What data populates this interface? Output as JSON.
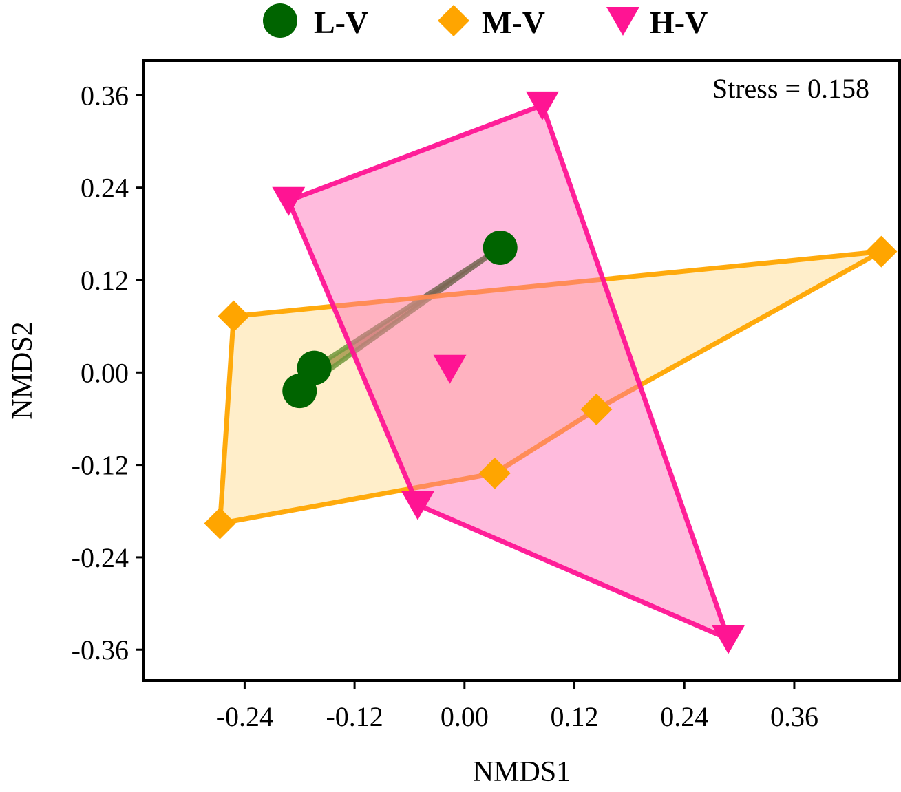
{
  "chart_data": {
    "type": "scatter",
    "xlabel": "NMDS1",
    "ylabel": "NMDS2",
    "xlim": [
      -0.35,
      0.475
    ],
    "ylim": [
      -0.4,
      0.405
    ],
    "xticks": [
      -0.24,
      -0.12,
      0.0,
      0.12,
      0.24,
      0.36
    ],
    "yticks": [
      -0.36,
      -0.24,
      -0.12,
      0.0,
      0.12,
      0.24,
      0.36
    ],
    "xtick_labels": [
      "-0.24",
      "-0.12",
      "0.00",
      "0.12",
      "0.24",
      "0.36"
    ],
    "ytick_labels": [
      "-0.36",
      "-0.24",
      "-0.12",
      "0.00",
      "0.12",
      "0.24",
      "0.36"
    ],
    "annotation": "Stress = 0.158",
    "legend_position": "top",
    "series": [
      {
        "name": "L-V",
        "marker": "circle",
        "color": "#006400",
        "fill_color": "#6b6b2a",
        "points": [
          [
            0.039,
            0.162
          ],
          [
            -0.164,
            0.006
          ],
          [
            -0.18,
            -0.024
          ]
        ],
        "hull": [
          [
            0.039,
            0.162
          ],
          [
            -0.164,
            0.006
          ],
          [
            -0.18,
            -0.024
          ]
        ]
      },
      {
        "name": "M-V",
        "marker": "diamond",
        "color": "#FFA500",
        "fill_color": "#FFD98A",
        "points": [
          [
            -0.252,
            0.073
          ],
          [
            0.455,
            0.157
          ],
          [
            0.144,
            -0.048
          ],
          [
            0.033,
            -0.131
          ],
          [
            -0.267,
            -0.196
          ]
        ],
        "hull": [
          [
            -0.252,
            0.073
          ],
          [
            0.455,
            0.157
          ],
          [
            0.144,
            -0.048
          ],
          [
            0.033,
            -0.131
          ],
          [
            -0.267,
            -0.196
          ]
        ]
      },
      {
        "name": "H-V",
        "marker": "triangle-down",
        "color": "#FF1493",
        "fill_color": "#FF69B4",
        "points": [
          [
            0.085,
            0.347
          ],
          [
            -0.192,
            0.223
          ],
          [
            -0.016,
            0.005
          ],
          [
            -0.051,
            -0.172
          ],
          [
            0.288,
            -0.346
          ]
        ],
        "hull": [
          [
            0.085,
            0.347
          ],
          [
            -0.192,
            0.223
          ],
          [
            -0.051,
            -0.172
          ],
          [
            0.288,
            -0.346
          ]
        ]
      }
    ]
  }
}
